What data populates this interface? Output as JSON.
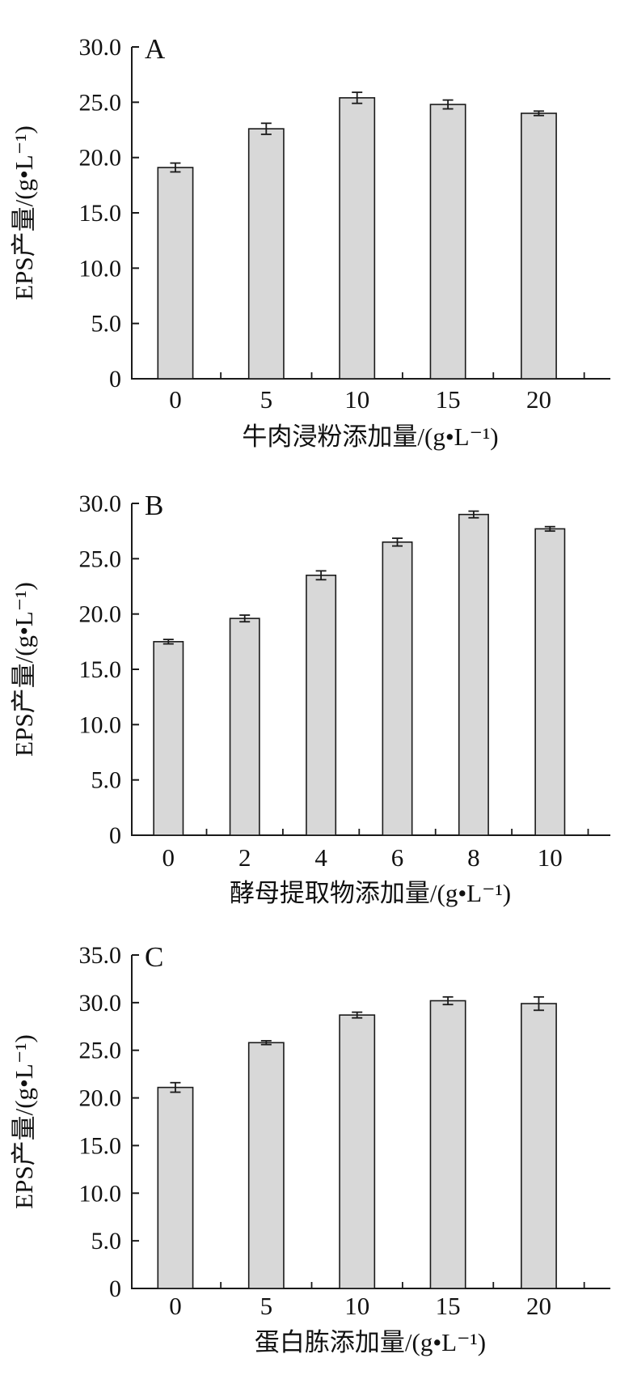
{
  "figure_title": "EPS yield bar charts (panels A, B, C)",
  "chart_data": [
    {
      "type": "bar",
      "panel_label": "A",
      "xlabel": "牛肉浸粉添加量/(g•L⁻¹)",
      "ylabel": "EPS产量/(g•L⁻¹)",
      "categories": [
        "0",
        "5",
        "10",
        "15",
        "20"
      ],
      "values": [
        19.1,
        22.6,
        25.4,
        24.8,
        24.0
      ],
      "errors": [
        0.4,
        0.5,
        0.5,
        0.4,
        0.2
      ],
      "ylim": [
        0,
        30
      ],
      "ytick_labels": [
        "0",
        "5.0",
        "10.0",
        "15.0",
        "20.0",
        "25.0",
        "30.0"
      ],
      "grid": false,
      "legend": "none",
      "bar_fill": "#d8d8d8",
      "bar_stroke": "#1a1a1a"
    },
    {
      "type": "bar",
      "panel_label": "B",
      "xlabel": "酵母提取物添加量/(g•L⁻¹)",
      "ylabel": "EPS产量/(g•L⁻¹)",
      "categories": [
        "0",
        "2",
        "4",
        "6",
        "8",
        "10"
      ],
      "values": [
        17.5,
        19.6,
        23.5,
        26.5,
        29.0,
        27.7
      ],
      "errors": [
        0.2,
        0.3,
        0.4,
        0.35,
        0.3,
        0.2
      ],
      "ylim": [
        0,
        30
      ],
      "ytick_labels": [
        "0",
        "5.0",
        "10.0",
        "15.0",
        "20.0",
        "25.0",
        "30.0"
      ],
      "grid": false,
      "legend": "none",
      "bar_fill": "#d8d8d8",
      "bar_stroke": "#1a1a1a"
    },
    {
      "type": "bar",
      "panel_label": "C",
      "xlabel": "蛋白胨添加量/(g•L⁻¹)",
      "ylabel": "EPS产量/(g•L⁻¹)",
      "categories": [
        "0",
        "5",
        "10",
        "15",
        "20"
      ],
      "values": [
        21.1,
        25.8,
        28.7,
        30.2,
        29.9
      ],
      "errors": [
        0.5,
        0.2,
        0.3,
        0.4,
        0.7
      ],
      "ylim": [
        0,
        35
      ],
      "ytick_labels": [
        "0",
        "5.0",
        "10.0",
        "15.0",
        "20.0",
        "25.0",
        "30.0",
        "35.0"
      ],
      "grid": false,
      "legend": "none",
      "bar_fill": "#d8d8d8",
      "bar_stroke": "#1a1a1a"
    }
  ]
}
